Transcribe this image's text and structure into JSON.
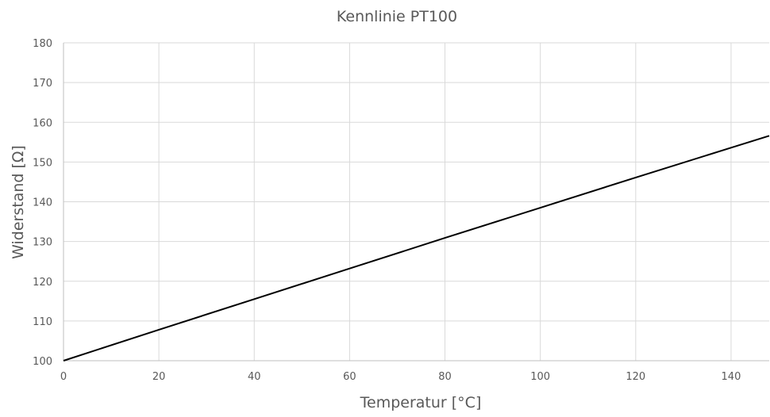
{
  "chart_data": {
    "type": "line",
    "title": "Kennlinie PT100",
    "xlabel": "Temperatur [°C]",
    "ylabel": "Widerstand [Ω]",
    "xlim": [
      0,
      148
    ],
    "ylim": [
      100,
      180
    ],
    "x_ticks": [
      0,
      20,
      40,
      60,
      80,
      100,
      120,
      140
    ],
    "y_ticks": [
      100,
      110,
      120,
      130,
      140,
      150,
      160,
      170,
      180
    ],
    "x_tick_labels": [
      "0",
      "20",
      "40",
      "60",
      "80",
      "100",
      "120",
      "140"
    ],
    "y_tick_labels": [
      "100",
      "110",
      "120",
      "130",
      "140",
      "150",
      "160",
      "170",
      "180"
    ],
    "grid": true,
    "series": [
      {
        "color": "#000000",
        "x": [
          0,
          20,
          40,
          60,
          80,
          100,
          120,
          140,
          148
        ],
        "y": [
          100.0,
          107.8,
          115.5,
          123.2,
          130.9,
          138.5,
          146.1,
          153.6,
          156.6
        ]
      }
    ]
  }
}
